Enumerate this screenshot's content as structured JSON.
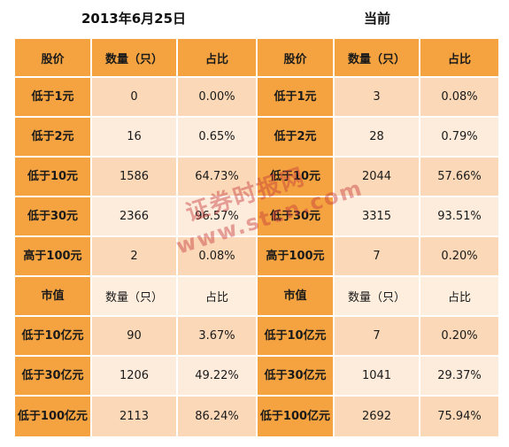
{
  "titles": {
    "left": "2013年6月25日",
    "right": "当前"
  },
  "header_price": [
    "股价",
    "数量（只）",
    "占比",
    "股价",
    "数量（只）",
    "占比"
  ],
  "price_rows": [
    [
      "低于1元",
      "0",
      "0.00%",
      "低于1元",
      "3",
      "0.08%"
    ],
    [
      "低于2元",
      "16",
      "0.65%",
      "低于2元",
      "28",
      "0.79%"
    ],
    [
      "低于10元",
      "1586",
      "64.73%",
      "低于10元",
      "2044",
      "57.66%"
    ],
    [
      "低于30元",
      "2366",
      "96.57%",
      "低于30元",
      "3315",
      "93.51%"
    ],
    [
      "高于100元",
      "2",
      "0.08%",
      "高于100元",
      "7",
      "0.20%"
    ]
  ],
  "header_cap": [
    "市值",
    "数量（只）",
    "占比",
    "市值",
    "数量（只）",
    "占比"
  ],
  "cap_rows": [
    [
      "低于10亿元",
      "90",
      "3.67%",
      "低于10亿元",
      "7",
      "0.20%"
    ],
    [
      "低于30亿元",
      "1206",
      "49.22%",
      "低于30亿元",
      "1041",
      "29.37%"
    ],
    [
      "低于100亿元",
      "2113",
      "86.24%",
      "低于100亿元",
      "2692",
      "75.94%"
    ]
  ],
  "watermark": {
    "line1": "证券时报网",
    "line2": "www.stcn.com"
  },
  "colors": {
    "header_orange": "#f4a340",
    "cell_dark": "#fbd9b8",
    "cell_light": "#fdecdc",
    "watermark": "#c83c3c"
  }
}
